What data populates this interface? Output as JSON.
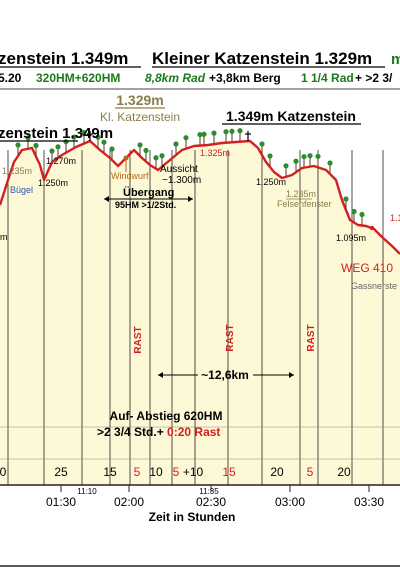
{
  "header": {
    "title_left": "zenstein 1.349m",
    "title_mid": "Kleiner Katzenstein 1.329m",
    "title_right": "m",
    "row2": [
      {
        "text": "5.20",
        "color": "#000000"
      },
      {
        "text": "320HM+620HM",
        "color": "#1a7a1a"
      },
      {
        "text": "8,8km Rad",
        "color": "#1a7a1a",
        "italic": true
      },
      {
        "text": "+3,8km Berg",
        "color": "#000000"
      },
      {
        "text": "1 1/4 Rad",
        "color": "#1a7a1a"
      },
      {
        "text": "+ >2 3/",
        "color": "#000000"
      }
    ]
  },
  "peaks": [
    {
      "name": "zenstein 1.349m",
      "underline": true
    },
    {
      "name": "1.329m",
      "sub": "Kl. Katzenstein",
      "color": "#8b7d4a"
    },
    {
      "name": "1.349m Katzenstein",
      "underline": true
    }
  ],
  "labels": {
    "bugel": "Bügel",
    "windwurf": "Windwurf",
    "aussicht": "Aussicht",
    "aussicht_h": "~1.300m",
    "uebergang": "Übergang",
    "uebergang_detail": "95HM  >1/2Std.",
    "felsenfenster": "Felsenfenster",
    "weg": "WEG 410",
    "gassner": "Gassnerste",
    "distance": "~12,6km",
    "auf_abstieg": "Auf- Abstieg 620HM",
    "rast_line_a": ">2 3/4 Std.+",
    "rast_line_b": "0:20 Rast",
    "xlabel": "Zeit in Stunden",
    "rast": "RAST",
    "tick_1110": "11:10",
    "tick_1135": "11:35"
  },
  "colors": {
    "profile": "#d42020",
    "fill": "#fdf8d6",
    "accent_red": "#d42020",
    "green": "#1a7a1a",
    "brown": "#8b5a2b"
  },
  "chart_data": {
    "type": "area",
    "title": "",
    "xlabel": "Zeit in Stunden",
    "ylabel": "",
    "x_ticks": [
      "01:30",
      "02:00",
      "02:30",
      "03:00",
      "03:30"
    ],
    "elevation_labels": [
      {
        "text": "1.235m",
        "color": "#8b7d4a"
      },
      {
        "text": "1.270m",
        "color": "#000000"
      },
      {
        "text": "1.250m",
        "color": "#000000"
      },
      {
        "text": "1.325m",
        "color": "#d42020"
      },
      {
        "text": "1.250m",
        "color": "#000000"
      },
      {
        "text": "1.235m",
        "color": "#8b7d4a"
      },
      {
        "text": "1.095m",
        "color": "#000000"
      },
      {
        "text": "1.1",
        "color": "#d42020"
      },
      {
        "text": "m",
        "color": "#000000"
      }
    ],
    "segment_minutes": [
      {
        "text": "0",
        "color": "#000000"
      },
      {
        "text": "25",
        "color": "#000000"
      },
      {
        "text": "15",
        "color": "#000000"
      },
      {
        "text": "5",
        "color": "#d42020"
      },
      {
        "text": "10",
        "color": "#000000"
      },
      {
        "text": "5",
        "color": "#d42020"
      },
      {
        "text": "+10",
        "color": "#000000"
      },
      {
        "text": "15",
        "color": "#d42020"
      },
      {
        "text": "20",
        "color": "#000000"
      },
      {
        "text": "5",
        "color": "#d42020"
      },
      {
        "text": "20",
        "color": "#000000"
      }
    ]
  }
}
